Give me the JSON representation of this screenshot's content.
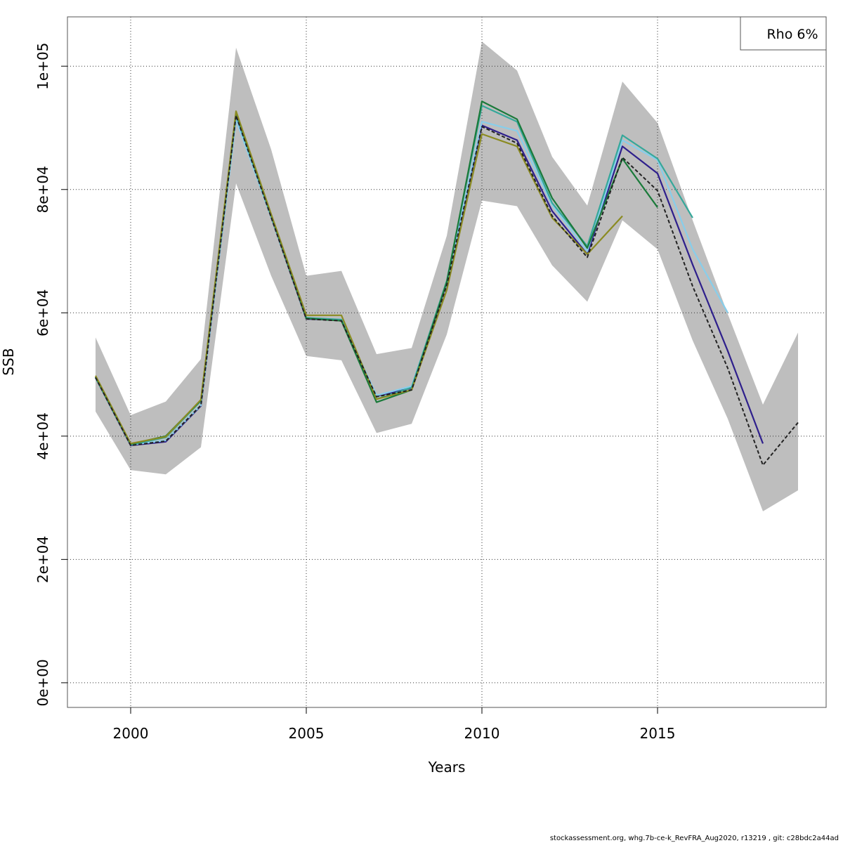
{
  "chart_data": {
    "type": "line",
    "xlabel": "Years",
    "ylabel": "SSB",
    "xlim": [
      1998.2,
      2019.8
    ],
    "ylim": [
      -4000,
      108000
    ],
    "x_ticks": [
      2000,
      2005,
      2010,
      2015
    ],
    "x_tick_labels": [
      "2000",
      "2005",
      "2010",
      "2015"
    ],
    "y_ticks": [
      0,
      20000,
      40000,
      60000,
      80000,
      100000
    ],
    "y_tick_labels": [
      "0e+00",
      "2e+04",
      "4e+04",
      "6e+04",
      "8e+04",
      "1e+05"
    ],
    "grid": true,
    "legend": {
      "position": "top-right",
      "text": "Rho 6%"
    },
    "band": {
      "color": "#bebebe",
      "x": [
        1999,
        2000,
        2001,
        2002,
        2003,
        2004,
        2005,
        2006,
        2007,
        2008,
        2009,
        2010,
        2011,
        2012,
        2013,
        2014,
        2015,
        2016,
        2017,
        2018,
        2019
      ],
      "lower": [
        44000,
        34500,
        33800,
        38200,
        81000,
        66000,
        53000,
        52300,
        40500,
        42000,
        56500,
        78200,
        77300,
        67700,
        61800,
        75000,
        70300,
        55500,
        42800,
        27800,
        31200
      ],
      "upper": [
        56000,
        43400,
        45600,
        52500,
        103000,
        86500,
        66000,
        66800,
        53300,
        54300,
        72500,
        104000,
        99300,
        85300,
        77400,
        97500,
        90800,
        75000,
        59800,
        45100,
        56800
      ]
    },
    "series": [
      {
        "color": "#222222",
        "dashed": true,
        "x": [
          1999,
          2000,
          2001,
          2002,
          2003,
          2004,
          2005,
          2006,
          2007,
          2008,
          2009,
          2010,
          2011,
          2012,
          2013,
          2014,
          2015,
          2016,
          2017,
          2018,
          2019
        ],
        "values": [
          49500,
          38500,
          39200,
          45000,
          92000,
          75500,
          59000,
          58700,
          46400,
          47500,
          64500,
          90200,
          87500,
          75700,
          69000,
          85200,
          79800,
          64300,
          51000,
          35300,
          42200
        ]
      },
      {
        "color": "#2e1f8c",
        "x": [
          1999,
          2000,
          2001,
          2002,
          2003,
          2004,
          2005,
          2006,
          2007,
          2008,
          2009,
          2010,
          2011,
          2012,
          2013,
          2014,
          2015,
          2016,
          2017,
          2018
        ],
        "values": [
          49500,
          38500,
          39100,
          44900,
          91500,
          75500,
          59000,
          58800,
          46500,
          47800,
          64700,
          90400,
          88000,
          76500,
          69500,
          87000,
          82600,
          67800,
          53800,
          38800
        ]
      },
      {
        "color": "#87ceeb",
        "x": [
          1999,
          2000,
          2001,
          2002,
          2003,
          2004,
          2005,
          2006,
          2007,
          2008,
          2009,
          2010,
          2011,
          2012,
          2013,
          2014,
          2015,
          2016,
          2017
        ],
        "values": [
          49500,
          38600,
          39300,
          45000,
          91300,
          75500,
          59100,
          58900,
          46600,
          48100,
          64800,
          91000,
          89500,
          77500,
          70000,
          88000,
          84800,
          70300,
          60000
        ]
      },
      {
        "color": "#35a89a",
        "x": [
          1999,
          2000,
          2001,
          2002,
          2003,
          2004,
          2005,
          2006,
          2007,
          2008,
          2009,
          2010,
          2011,
          2012,
          2013,
          2014,
          2015,
          2016
        ],
        "values": [
          49500,
          38600,
          39800,
          45700,
          92200,
          75700,
          59200,
          58900,
          46000,
          47900,
          65200,
          93600,
          91000,
          77800,
          70800,
          88800,
          85000,
          75400
        ]
      },
      {
        "color": "#1a7a3a",
        "x": [
          1999,
          2000,
          2001,
          2002,
          2003,
          2004,
          2005,
          2006,
          2007,
          2008,
          2009,
          2010,
          2011,
          2012,
          2013,
          2014,
          2015
        ],
        "values": [
          49600,
          38700,
          40000,
          45800,
          92500,
          75800,
          59100,
          58700,
          45500,
          47500,
          65000,
          94300,
          91400,
          78600,
          70500,
          85000,
          77100
        ]
      },
      {
        "color": "#8b8b22",
        "x": [
          1999,
          2000,
          2001,
          2002,
          2003,
          2004,
          2005,
          2006,
          2007,
          2008,
          2009,
          2010,
          2011,
          2012,
          2013,
          2014
        ],
        "values": [
          49800,
          38800,
          39900,
          45900,
          92700,
          76000,
          59600,
          59600,
          46000,
          47500,
          63700,
          89000,
          87000,
          75400,
          69500,
          75700
        ]
      }
    ]
  },
  "footer": "stockassessment.org, whg.7b-ce-k_RevFRA_Aug2020, r13219 , git: c28bdc2a44ad"
}
